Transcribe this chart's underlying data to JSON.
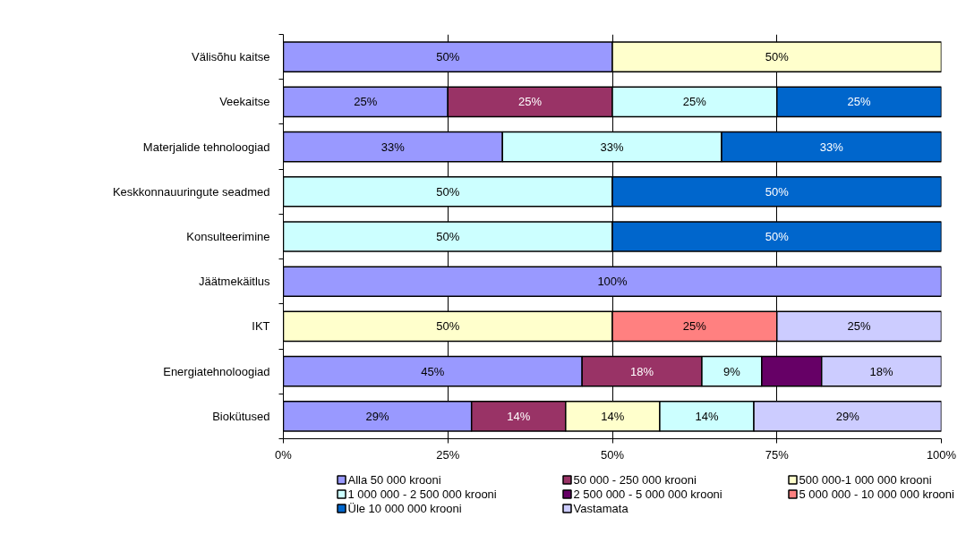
{
  "chart_data": {
    "type": "bar",
    "orientation": "horizontal",
    "stacked": true,
    "categories": [
      "Välisõhu kaitse",
      "Veekaitse",
      "Materjalide tehnoloogiad",
      "Keskkonnauuringute seadmed",
      "Konsulteerimine",
      "Jäätmekäitlus",
      "IKT",
      "Energiatehnoloogiad",
      "Biokütused"
    ],
    "series": [
      {
        "name": "Alla 50 000 krooni",
        "color": "#9999ff",
        "values": [
          50,
          25,
          33.3,
          null,
          null,
          100,
          null,
          45.4,
          28.6
        ],
        "value_labels": [
          "50%",
          "25%",
          "33%",
          null,
          null,
          "100%",
          null,
          "45%",
          "29%"
        ]
      },
      {
        "name": "50 000 - 250 000 krooni",
        "color": "#993366",
        "values": [
          null,
          25,
          null,
          null,
          null,
          null,
          null,
          18.2,
          14.3
        ],
        "value_labels": [
          null,
          "25%",
          null,
          null,
          null,
          null,
          null,
          "18%",
          "14%"
        ]
      },
      {
        "name": "500 000-1 000 000 krooni",
        "color": "#ffffcc",
        "values": [
          50,
          null,
          null,
          null,
          null,
          null,
          50,
          null,
          14.3
        ],
        "value_labels": [
          "50%",
          null,
          null,
          null,
          null,
          null,
          "50%",
          null,
          "14%"
        ]
      },
      {
        "name": "1 000 000 - 2 500 000 krooni",
        "color": "#ccffff",
        "values": [
          null,
          25,
          33.3,
          50,
          50,
          null,
          null,
          9.1,
          14.3
        ],
        "value_labels": [
          null,
          "25%",
          "33%",
          "50%",
          "50%",
          null,
          null,
          "9%",
          "14%"
        ]
      },
      {
        "name": "2 500 000 - 5 000 000 krooni",
        "color": "#660066",
        "values": [
          null,
          null,
          null,
          null,
          null,
          null,
          null,
          9.1,
          null
        ],
        "value_labels": [
          null,
          null,
          null,
          null,
          null,
          null,
          null,
          null,
          null
        ]
      },
      {
        "name": "5 000 000 - 10 000 000 krooni",
        "color": "#ff8080",
        "values": [
          null,
          null,
          null,
          null,
          null,
          null,
          25,
          null,
          null
        ],
        "value_labels": [
          null,
          null,
          null,
          null,
          null,
          null,
          "25%",
          null,
          null
        ]
      },
      {
        "name": "Üle 10 000 000 krooni",
        "color": "#0066cc",
        "values": [
          null,
          25,
          33.4,
          50,
          50,
          null,
          null,
          null,
          null
        ],
        "value_labels": [
          null,
          "25%",
          "33%",
          "50%",
          "50%",
          null,
          null,
          null,
          null
        ]
      },
      {
        "name": "Vastamata",
        "color": "#ccccff",
        "values": [
          null,
          null,
          null,
          null,
          null,
          null,
          25,
          18.2,
          28.5
        ],
        "value_labels": [
          null,
          null,
          null,
          null,
          null,
          null,
          "25%",
          "18%",
          "29%"
        ]
      }
    ],
    "xlim": [
      0,
      100
    ],
    "xticks": [
      {
        "value": 0,
        "label": "0%"
      },
      {
        "value": 25,
        "label": "25%"
      },
      {
        "value": 50,
        "label": "50%"
      },
      {
        "value": 75,
        "label": "75%"
      },
      {
        "value": 100,
        "label": "100%"
      }
    ],
    "grid": "x",
    "legend": "bottom"
  }
}
